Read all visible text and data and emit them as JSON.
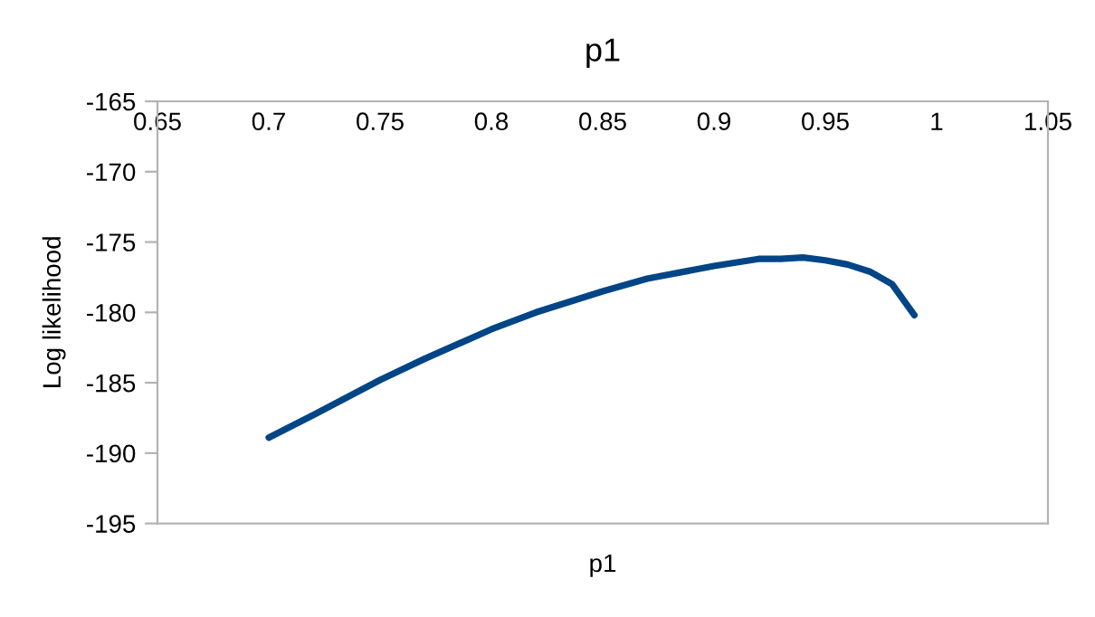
{
  "chart_data": {
    "type": "line",
    "title": "p1",
    "xlabel": "p1",
    "ylabel": "Log likelihood",
    "x": [
      0.7,
      0.72,
      0.75,
      0.77,
      0.8,
      0.82,
      0.85,
      0.87,
      0.9,
      0.92,
      0.93,
      0.94,
      0.95,
      0.96,
      0.97,
      0.98,
      0.99
    ],
    "series": [
      {
        "color": "#004586",
        "values": [
          -188.9,
          -187.3,
          -184.8,
          -183.3,
          -181.2,
          -180.0,
          -178.5,
          -177.6,
          -176.7,
          -176.2,
          -176.2,
          -176.1,
          -176.3,
          -176.6,
          -177.1,
          -178.0,
          -180.2
        ]
      }
    ],
    "xlim": [
      0.65,
      1.05
    ],
    "xticks": [
      0.65,
      0.7,
      0.75,
      0.8,
      0.85,
      0.9,
      0.95,
      1,
      1.05
    ],
    "ylim": [
      -195,
      -165
    ],
    "yticks": [
      -195,
      -190,
      -185,
      -180,
      -175,
      -170,
      -165
    ],
    "grid": false,
    "legend": false,
    "marker": "none",
    "line_style": "solid"
  }
}
